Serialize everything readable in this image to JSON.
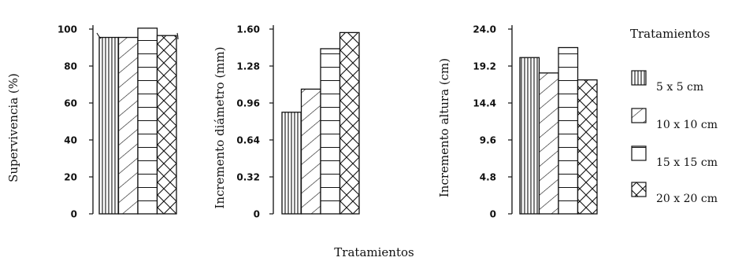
{
  "chart_data": [
    {
      "type": "bar",
      "ylabel": "Supervivencia (%)",
      "yticks": [
        "0",
        "20",
        "40",
        "60",
        "80",
        "100"
      ],
      "ylim": [
        0,
        100
      ],
      "categories": [
        "5 x 5 cm",
        "10 x 10 cm",
        "15 x 15 cm",
        "20 x 20 cm"
      ],
      "values": [
        95.5,
        95.5,
        100.5,
        96.5
      ],
      "patterns": [
        "vertical",
        "diagonal",
        "horizontal",
        "crosshatch"
      ]
    },
    {
      "type": "bar",
      "ylabel": "Incremento diámetro (mm)",
      "yticks": [
        "0",
        "0.32",
        "0.64",
        "0.96",
        "1.28",
        "1.60"
      ],
      "ylim": [
        0,
        1.6
      ],
      "categories": [
        "5 x 5 cm",
        "10 x 10 cm",
        "15 x 15 cm",
        "20 x 20 cm"
      ],
      "values": [
        0.88,
        1.08,
        1.43,
        1.57
      ],
      "patterns": [
        "vertical",
        "diagonal",
        "horizontal",
        "crosshatch"
      ]
    },
    {
      "type": "bar",
      "ylabel": "Incremento altura (cm)",
      "yticks": [
        "0",
        "4.8",
        "9.6",
        "14.4",
        "19.2",
        "24.0"
      ],
      "ylim": [
        0,
        24
      ],
      "categories": [
        "5 x 5 cm",
        "10 x 10 cm",
        "15 x 15 cm",
        "20 x 20 cm"
      ],
      "values": [
        20.3,
        18.3,
        21.6,
        17.4
      ],
      "patterns": [
        "vertical",
        "diagonal",
        "horizontal",
        "crosshatch"
      ]
    }
  ],
  "legend": {
    "title": "Tratamientos",
    "items": [
      {
        "label": "5 x 5 cm",
        "pattern": "vertical"
      },
      {
        "label": "10 x 10 cm",
        "pattern": "diagonal"
      },
      {
        "label": "15 x 15 cm",
        "pattern": "horizontal"
      },
      {
        "label": "20 x 20 cm",
        "pattern": "crosshatch"
      }
    ]
  },
  "xlabel": "Tratamientos",
  "colors": {
    "ink": "#111111",
    "background": "#ffffff"
  }
}
